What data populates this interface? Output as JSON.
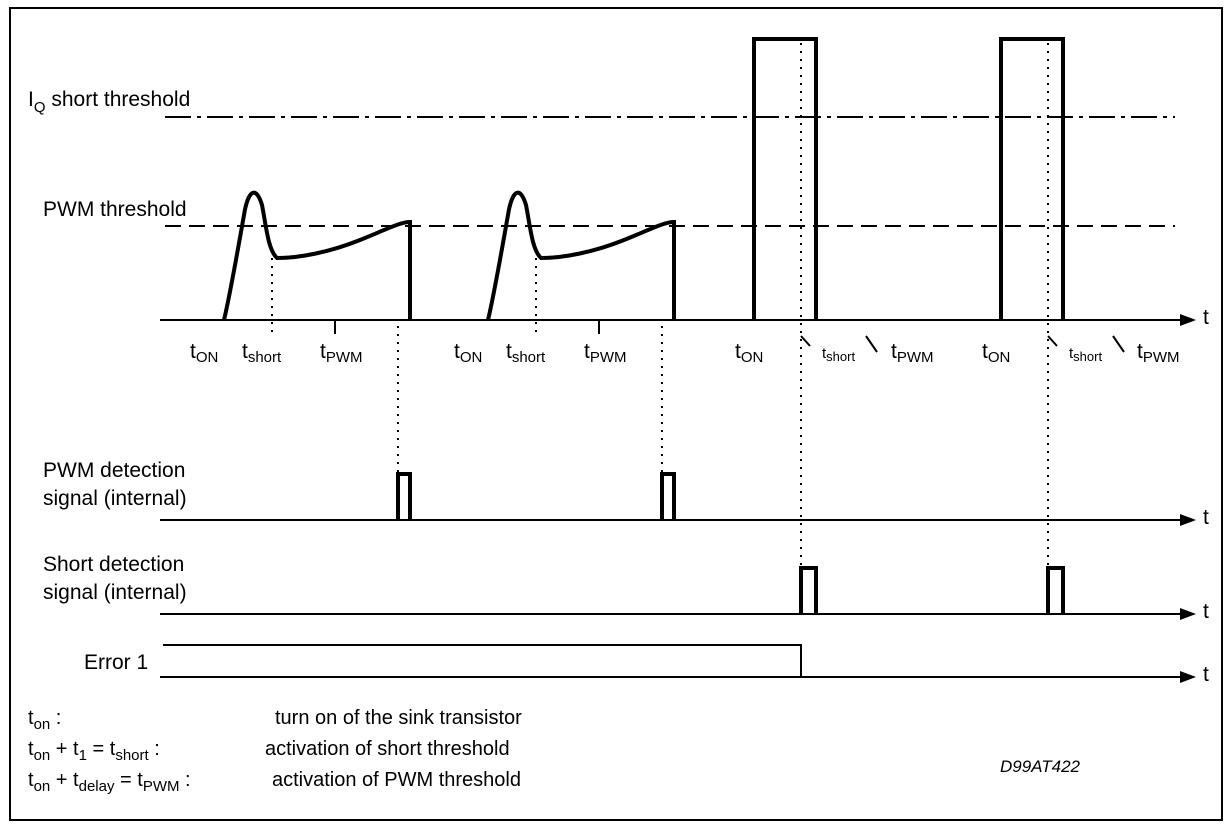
{
  "diagram": {
    "labels": {
      "iq_threshold": {
        "main": "I",
        "sub": "Q",
        "rest": " short threshold"
      },
      "pwm_threshold": "PWM threshold",
      "pwm_detection": [
        "PWM detection",
        "signal (internal)"
      ],
      "short_detection": [
        "Short detection",
        "signal (internal)"
      ],
      "error": "Error 1",
      "axis_t": "t"
    },
    "time_marks": {
      "t": "t",
      "on": "ON",
      "short": "short",
      "pwm": "PWM"
    },
    "legend": [
      {
        "term": {
          "t": "t",
          "sub": "on",
          "suffix": " :"
        },
        "desc": "turn on of the sink transistor"
      },
      {
        "term_text": [
          "t",
          "on",
          " + t",
          "1",
          " = t",
          "short",
          " :"
        ],
        "desc": "activation of short threshold"
      },
      {
        "term_text": [
          "t",
          "on",
          " + t",
          "delay",
          " = t",
          "PWM",
          " :"
        ],
        "desc": "activation of PWM threshold"
      }
    ],
    "code": "D99AT422",
    "colors": {
      "line": "#000000",
      "background": "#ffffff"
    }
  }
}
